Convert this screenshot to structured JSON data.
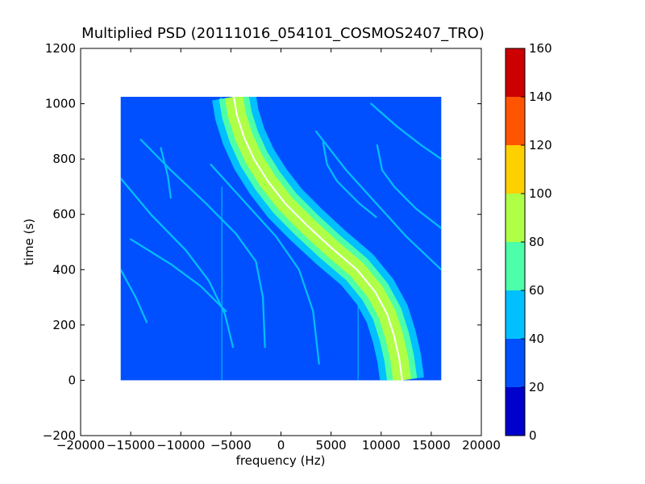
{
  "chart_data": {
    "type": "heatmap",
    "title": "Multiplied PSD (20111016_054101_COSMOS2407_TRO)",
    "xlabel": "frequency (Hz)",
    "ylabel": "time (s)",
    "xlim": [
      -20000,
      20000
    ],
    "ylim": [
      -200,
      1200
    ],
    "xticks": [
      -20000,
      -15000,
      -10000,
      -5000,
      0,
      5000,
      10000,
      15000,
      20000
    ],
    "yticks": [
      -200,
      0,
      200,
      400,
      600,
      800,
      1000,
      1200
    ],
    "data_extent": {
      "x": [
        -16000,
        16000
      ],
      "y": [
        0,
        1025
      ]
    },
    "background_level": 20,
    "main_trace": {
      "description_level": "peak",
      "points": [
        {
          "t": 1025,
          "f": -4700
        },
        {
          "t": 960,
          "f": -4400
        },
        {
          "t": 880,
          "f": -3700
        },
        {
          "t": 800,
          "f": -2700
        },
        {
          "t": 720,
          "f": -1300
        },
        {
          "t": 640,
          "f": 400
        },
        {
          "t": 560,
          "f": 2600
        },
        {
          "t": 480,
          "f": 5000
        },
        {
          "t": 400,
          "f": 7600
        },
        {
          "t": 320,
          "f": 9400
        },
        {
          "t": 240,
          "f": 10600
        },
        {
          "t": 160,
          "f": 11300
        },
        {
          "t": 80,
          "f": 11800
        },
        {
          "t": 0,
          "f": 12100
        }
      ],
      "levels": [
        {
          "half_width": 2200,
          "value": 50
        },
        {
          "half_width": 1500,
          "value": 60
        },
        {
          "half_width": 900,
          "value": 80
        },
        {
          "half_width": 350,
          "value": 90
        },
        {
          "half_width": 80,
          "value": 160
        }
      ]
    },
    "faint_traces": [
      {
        "value": 50,
        "points": [
          {
            "t": 730,
            "f": -16000
          },
          {
            "t": 600,
            "f": -13000
          },
          {
            "t": 470,
            "f": -9500
          },
          {
            "t": 360,
            "f": -7200
          },
          {
            "t": 240,
            "f": -5600
          },
          {
            "t": 120,
            "f": -4800
          }
        ]
      },
      {
        "value": 50,
        "points": [
          {
            "t": 510,
            "f": -15000
          },
          {
            "t": 420,
            "f": -11000
          },
          {
            "t": 340,
            "f": -8000
          },
          {
            "t": 250,
            "f": -5500
          }
        ]
      },
      {
        "value": 45,
        "points": [
          {
            "t": 870,
            "f": -14000
          },
          {
            "t": 760,
            "f": -11000
          },
          {
            "t": 640,
            "f": -7500
          },
          {
            "t": 530,
            "f": -4500
          },
          {
            "t": 430,
            "f": -2500
          },
          {
            "t": 300,
            "f": -1800
          },
          {
            "t": 120,
            "f": -1600
          }
        ]
      },
      {
        "value": 50,
        "points": [
          {
            "t": 840,
            "f": -12000
          },
          {
            "t": 740,
            "f": -11300
          },
          {
            "t": 660,
            "f": -11000
          }
        ]
      },
      {
        "value": 45,
        "points": [
          {
            "t": 780,
            "f": -7000
          },
          {
            "t": 640,
            "f": -3500
          },
          {
            "t": 520,
            "f": -500
          },
          {
            "t": 400,
            "f": 1800
          },
          {
            "t": 250,
            "f": 3200
          },
          {
            "t": 60,
            "f": 3800
          }
        ]
      },
      {
        "value": 50,
        "points": [
          {
            "t": 860,
            "f": 4200
          },
          {
            "t": 780,
            "f": 4600
          },
          {
            "t": 720,
            "f": 5600
          },
          {
            "t": 640,
            "f": 7800
          },
          {
            "t": 590,
            "f": 9500
          }
        ]
      },
      {
        "value": 50,
        "points": [
          {
            "t": 850,
            "f": 9600
          },
          {
            "t": 760,
            "f": 10100
          },
          {
            "t": 700,
            "f": 11300
          },
          {
            "t": 620,
            "f": 13500
          },
          {
            "t": 550,
            "f": 16000
          }
        ]
      },
      {
        "value": 45,
        "points": [
          {
            "t": 1000,
            "f": 9000
          },
          {
            "t": 920,
            "f": 11500
          },
          {
            "t": 850,
            "f": 14000
          },
          {
            "t": 800,
            "f": 16000
          }
        ]
      },
      {
        "value": 45,
        "points": [
          {
            "t": 900,
            "f": 3500
          },
          {
            "t": 760,
            "f": 6500
          },
          {
            "t": 640,
            "f": 9500
          },
          {
            "t": 520,
            "f": 12500
          },
          {
            "t": 400,
            "f": 16000
          }
        ]
      },
      {
        "value": 45,
        "points": [
          {
            "t": 1020,
            "f": -6000
          },
          {
            "t": 980,
            "f": -5300
          }
        ]
      },
      {
        "value": 45,
        "points": [
          {
            "t": 400,
            "f": -16000
          },
          {
            "t": 300,
            "f": -14500
          },
          {
            "t": 210,
            "f": -13400
          }
        ]
      }
    ],
    "vertical_lines": [
      {
        "f": -5900,
        "t": [
          0,
          700
        ],
        "value": 50
      },
      {
        "f": 7700,
        "t": [
          0,
          440
        ],
        "value": 50
      },
      {
        "f": -1700,
        "t": [
          0,
          1025
        ],
        "value": 25
      }
    ],
    "colorbar": {
      "min": 0,
      "max": 160,
      "ticks": [
        0,
        20,
        40,
        60,
        80,
        100,
        120,
        140,
        160
      ],
      "levels": [
        {
          "from": 0,
          "to": 20,
          "color": "#0000cd"
        },
        {
          "from": 20,
          "to": 40,
          "color": "#0050ff"
        },
        {
          "from": 40,
          "to": 60,
          "color": "#00c0ff"
        },
        {
          "from": 60,
          "to": 80,
          "color": "#4dffa8"
        },
        {
          "from": 80,
          "to": 100,
          "color": "#b0ff47"
        },
        {
          "from": 100,
          "to": 120,
          "color": "#ffd000"
        },
        {
          "from": 120,
          "to": 140,
          "color": "#ff5500"
        },
        {
          "from": 140,
          "to": 160,
          "color": "#cc0000"
        }
      ]
    }
  }
}
